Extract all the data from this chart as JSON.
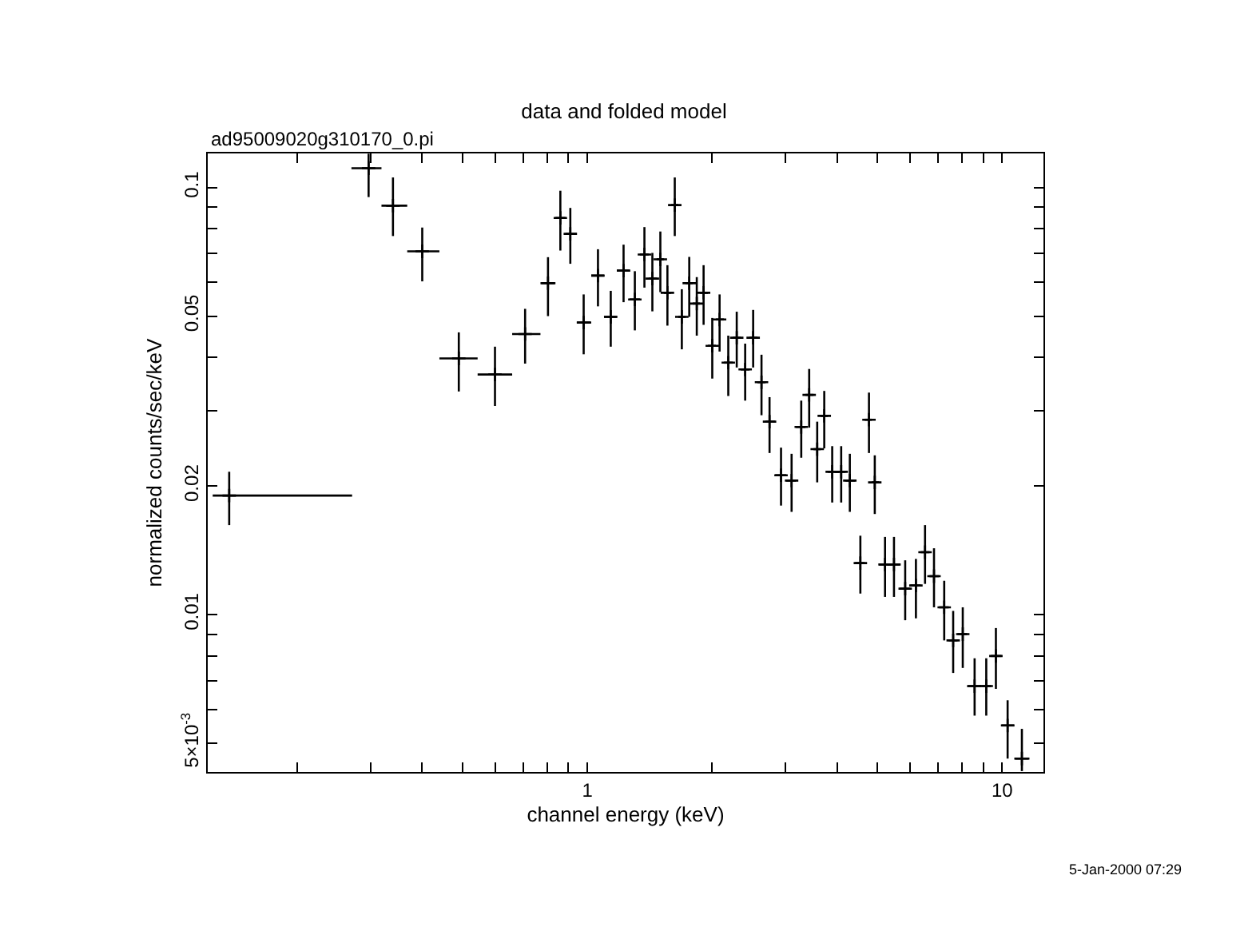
{
  "chart_data": {
    "type": "scatter",
    "title": "data and folded model",
    "subtitle": "ad95009020g310170_0.pi",
    "xlabel": "channel energy (keV)",
    "ylabel": "normalized counts/sec/keV",
    "annotations": [
      "5-Jan-2000 07:29"
    ],
    "log": "xy",
    "marker": "cross",
    "xlim": [
      0.1216,
      12.58
    ],
    "ylim": [
      0.00428,
      0.1202
    ],
    "xticks": [
      {
        "value": 0.2,
        "label": null
      },
      {
        "value": 0.3,
        "label": null
      },
      {
        "value": 0.4,
        "label": null
      },
      {
        "value": 0.5,
        "label": null
      },
      {
        "value": 0.6,
        "label": null
      },
      {
        "value": 0.7,
        "label": null
      },
      {
        "value": 0.8,
        "label": null
      },
      {
        "value": 0.9,
        "label": null
      },
      1,
      {
        "value": 2,
        "label": null
      },
      {
        "value": 3,
        "label": null
      },
      {
        "value": 4,
        "label": null
      },
      {
        "value": 5,
        "label": null
      },
      {
        "value": 6,
        "label": null
      },
      {
        "value": 7,
        "label": null
      },
      {
        "value": 8,
        "label": null
      },
      {
        "value": 9,
        "label": null
      },
      10
    ],
    "yticks": [
      {
        "value": 0.005,
        "label": "5×10$^{-3}$"
      },
      {
        "value": 0.006,
        "label": null
      },
      {
        "value": 0.007,
        "label": null
      },
      {
        "value": 0.008,
        "label": null
      },
      {
        "value": 0.009,
        "label": null
      },
      0.01,
      0.02,
      {
        "value": 0.03,
        "label": null
      },
      {
        "value": 0.04,
        "label": null
      },
      0.05,
      {
        "value": 0.06,
        "label": null
      },
      {
        "value": 0.07,
        "label": null
      },
      {
        "value": 0.08,
        "label": null
      },
      {
        "value": 0.09,
        "label": null
      },
      0.1
    ],
    "series": [
      {
        "color": "#000000",
        "x": [
          0.137,
          0.297,
          0.34,
          0.4,
          0.49,
          0.599,
          0.708,
          0.804,
          0.861,
          0.91,
          0.98,
          1.061,
          1.139,
          1.223,
          1.302,
          1.373,
          1.435,
          1.5,
          1.56,
          1.625,
          1.69,
          1.761,
          1.836,
          1.907,
          2.001,
          2.084,
          2.187,
          2.292,
          2.402,
          2.511,
          2.63,
          2.75,
          2.931,
          3.108,
          3.279,
          3.427,
          3.583,
          3.726,
          3.894,
          4.093,
          4.294,
          4.553,
          4.776,
          4.932,
          5.221,
          5.487,
          5.839,
          6.197,
          6.519,
          6.852,
          7.251,
          7.621,
          8.038,
          8.584,
          9.157,
          9.661,
          10.31,
          11.16
        ],
        "values": [
          0.019,
          0.111,
          0.0907,
          0.0709,
          0.0398,
          0.0365,
          0.0454,
          0.0597,
          0.0849,
          0.0779,
          0.0483,
          0.0622,
          0.0498,
          0.0639,
          0.0547,
          0.0697,
          0.0612,
          0.0679,
          0.0567,
          0.091,
          0.0498,
          0.0597,
          0.0535,
          0.0567,
          0.0426,
          0.0491,
          0.0389,
          0.0445,
          0.0375,
          0.0445,
          0.035,
          0.0283,
          0.0212,
          0.0206,
          0.0275,
          0.0327,
          0.0244,
          0.0292,
          0.0216,
          0.0216,
          0.0206,
          0.0132,
          0.0286,
          0.0204,
          0.0131,
          0.0131,
          0.0115,
          0.0117,
          0.014,
          0.0123,
          0.0104,
          0.0087,
          0.009,
          0.0068,
          0.0068,
          0.008,
          0.0055,
          0.0046
        ],
        "errors": [
          [
            0.0162,
            0.0216
          ],
          [
            0.095,
            0.12
          ],
          [
            0.077,
            0.1056
          ],
          [
            0.0603,
            0.0806
          ],
          [
            0.0333,
            0.0458
          ],
          [
            0.0308,
            0.0424
          ],
          [
            0.0387,
            0.052
          ],
          [
            0.05,
            0.0687
          ],
          [
            0.0712,
            0.0983
          ],
          [
            0.0663,
            0.0896
          ],
          [
            0.0407,
            0.0562
          ],
          [
            0.0527,
            0.0717
          ],
          [
            0.0424,
            0.0573
          ],
          [
            0.0539,
            0.0735
          ],
          [
            0.0463,
            0.0637
          ],
          [
            0.0583,
            0.0808
          ],
          [
            0.0513,
            0.0703
          ],
          [
            0.0569,
            0.0789
          ],
          [
            0.0475,
            0.0658
          ],
          [
            0.077,
            0.1056
          ],
          [
            0.0418,
            0.0578
          ],
          [
            0.0498,
            0.0688
          ],
          [
            0.045,
            0.0617
          ],
          [
            0.0477,
            0.0658
          ],
          [
            0.0357,
            0.0495
          ],
          [
            0.0413,
            0.0562
          ],
          [
            0.0325,
            0.045
          ],
          [
            0.0379,
            0.0512
          ],
          [
            0.0317,
            0.0431
          ],
          [
            0.0379,
            0.0517
          ],
          [
            0.0293,
            0.0406
          ],
          [
            0.0239,
            0.0323
          ],
          [
            0.018,
            0.0246
          ],
          [
            0.0174,
            0.0238
          ],
          [
            0.0233,
            0.0317
          ],
          [
            0.0274,
            0.0376
          ],
          [
            0.0204,
            0.0283
          ],
          [
            0.0245,
            0.0334
          ],
          [
            0.0183,
            0.0248
          ],
          [
            0.0183,
            0.0248
          ],
          [
            0.0174,
            0.0238
          ],
          [
            0.0112,
            0.0153
          ],
          [
            0.0239,
            0.0331
          ],
          [
            0.0172,
            0.0236
          ],
          [
            0.011,
            0.0152
          ],
          [
            0.011,
            0.0152
          ],
          [
            0.0097,
            0.0134
          ],
          [
            0.0098,
            0.0135
          ],
          [
            0.0118,
            0.0162
          ],
          [
            0.0104,
            0.0143
          ],
          [
            0.0087,
            0.012
          ],
          [
            0.0073,
            0.0102
          ],
          [
            0.0075,
            0.0104
          ],
          [
            0.0058,
            0.0079
          ],
          [
            0.0058,
            0.0079
          ],
          [
            0.0067,
            0.0093
          ],
          [
            0.0046,
            0.0063
          ],
          [
            0.0043,
            0.0054
          ]
        ],
        "xerrors": [
          [
            0.125,
            0.271
          ],
          [
            0.27,
            0.319
          ],
          [
            0.319,
            0.368
          ],
          [
            0.368,
            0.44
          ],
          [
            0.44,
            0.544
          ],
          [
            0.544,
            0.659
          ],
          [
            0.659,
            0.771
          ],
          [
            0.771,
            0.838
          ],
          [
            0.838,
            0.886
          ],
          [
            0.886,
            0.943
          ],
          [
            0.943,
            1.022
          ],
          [
            1.022,
            1.097
          ],
          [
            1.097,
            1.178
          ],
          [
            1.178,
            1.264
          ],
          [
            1.264,
            1.339
          ],
          [
            1.339,
            1.406
          ],
          [
            1.406,
            1.47
          ],
          [
            1.47,
            1.53
          ],
          [
            1.53,
            1.592
          ],
          [
            1.592,
            1.657
          ],
          [
            1.657,
            1.725
          ],
          [
            1.725,
            1.795
          ],
          [
            1.795,
            1.869
          ],
          [
            1.869,
            1.953
          ],
          [
            1.953,
            2.042
          ],
          [
            2.042,
            2.135
          ],
          [
            2.135,
            2.242
          ],
          [
            2.242,
            2.343
          ],
          [
            2.343,
            2.461
          ],
          [
            2.461,
            2.572
          ],
          [
            2.572,
            2.689
          ],
          [
            2.689,
            2.837
          ],
          [
            2.837,
            3.018
          ],
          [
            3.018,
            3.183
          ],
          [
            3.183,
            3.357
          ],
          [
            3.357,
            3.51
          ],
          [
            3.51,
            3.653
          ],
          [
            3.653,
            3.802
          ],
          [
            3.802,
            3.992
          ],
          [
            3.992,
            4.192
          ],
          [
            4.192,
            4.422
          ],
          [
            4.422,
            4.663
          ],
          [
            4.663,
            4.854
          ],
          [
            4.854,
            5.051
          ],
          [
            5.051,
            5.352
          ],
          [
            5.352,
            5.671
          ],
          [
            5.671,
            6.007
          ],
          [
            6.007,
            6.365
          ],
          [
            6.365,
            6.683
          ],
          [
            6.683,
            7.047
          ],
          [
            7.047,
            7.434
          ],
          [
            7.434,
            7.806
          ],
          [
            7.806,
            8.232
          ],
          [
            8.232,
            8.918
          ],
          [
            8.918,
            9.405
          ],
          [
            9.405,
            9.966
          ],
          [
            9.966,
            10.7
          ],
          [
            10.7,
            11.64
          ]
        ]
      }
    ]
  }
}
